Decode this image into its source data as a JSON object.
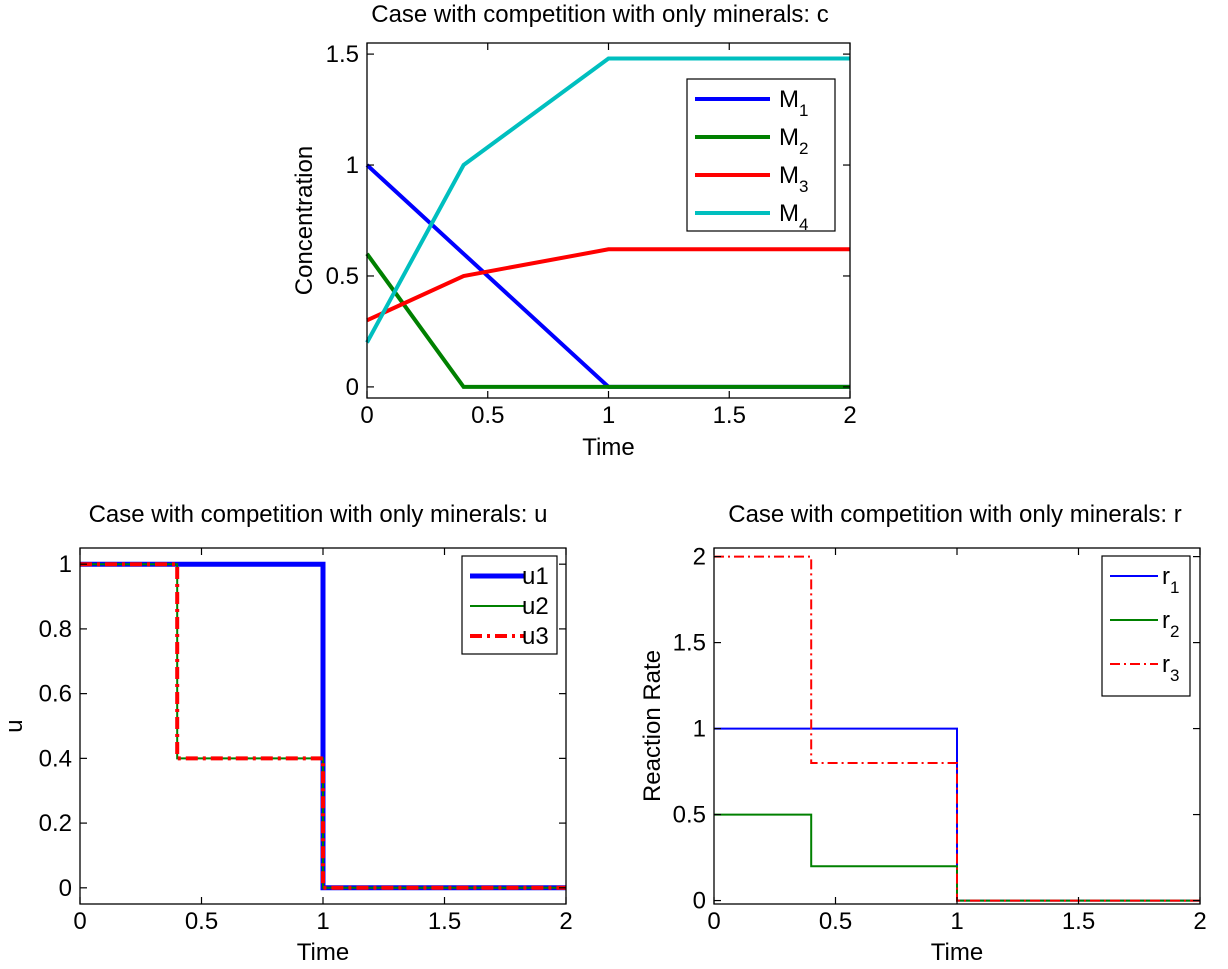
{
  "chart_data": [
    {
      "id": "c",
      "type": "line",
      "title": "Case with competition with only minerals: c",
      "xlabel": "Time",
      "ylabel": "Concentration",
      "xlim": [
        0,
        2
      ],
      "ylim": [
        -0.05,
        1.55
      ],
      "xticks": [
        "0",
        "0.5",
        "1",
        "1.5",
        "2"
      ],
      "xtick_values": [
        0,
        0.5,
        1,
        1.5,
        2
      ],
      "yticks": [
        "0",
        "0.5",
        "1",
        "1.5"
      ],
      "ytick_values": [
        0,
        0.5,
        1,
        1.5
      ],
      "grid": false,
      "legend": "top-right",
      "series": [
        {
          "name": "M",
          "sub": "1",
          "color": "#0000ff",
          "width": 4,
          "dash": "",
          "x": [
            0,
            0.4,
            1,
            2
          ],
          "y": [
            1.0,
            0.6,
            0.0,
            0.0
          ]
        },
        {
          "name": "M",
          "sub": "2",
          "color": "#008000",
          "width": 4,
          "dash": "",
          "x": [
            0,
            0.4,
            1,
            2
          ],
          "y": [
            0.6,
            0.0,
            0.0,
            0.0
          ]
        },
        {
          "name": "M",
          "sub": "3",
          "color": "#ff0000",
          "width": 4,
          "dash": "",
          "x": [
            0,
            0.4,
            1,
            2
          ],
          "y": [
            0.3,
            0.5,
            0.62,
            0.62
          ]
        },
        {
          "name": "M",
          "sub": "4",
          "color": "#00bfbf",
          "width": 4,
          "dash": "",
          "x": [
            0,
            0.4,
            1,
            2
          ],
          "y": [
            0.2,
            1.0,
            1.48,
            1.48
          ]
        }
      ]
    },
    {
      "id": "u",
      "type": "line",
      "title": "Case with competition with only minerals: u",
      "xlabel": "Time",
      "ylabel": "u",
      "xlim": [
        0,
        2
      ],
      "ylim": [
        -0.05,
        1.05
      ],
      "xticks": [
        "0",
        "0.5",
        "1",
        "1.5",
        "2"
      ],
      "xtick_values": [
        0,
        0.5,
        1,
        1.5,
        2
      ],
      "yticks": [
        "0",
        "0.2",
        "0.4",
        "0.6",
        "0.8",
        "1"
      ],
      "ytick_values": [
        0,
        0.2,
        0.4,
        0.6,
        0.8,
        1
      ],
      "grid": false,
      "legend": "top-right",
      "series": [
        {
          "name": "u1",
          "sub": "",
          "color": "#0000ff",
          "width": 5,
          "dash": "",
          "x": [
            0,
            1,
            1,
            2
          ],
          "y": [
            1,
            1,
            0,
            0
          ]
        },
        {
          "name": "u2",
          "sub": "",
          "color": "#008000",
          "width": 2,
          "dash": "",
          "x": [
            0,
            0.4,
            0.4,
            1,
            1,
            2
          ],
          "y": [
            1,
            1,
            0.4,
            0.4,
            0,
            0
          ]
        },
        {
          "name": "u3",
          "sub": "",
          "color": "#ff0000",
          "width": 4,
          "dash": "12,5,3,5",
          "x": [
            0,
            0.4,
            0.4,
            1,
            1,
            2
          ],
          "y": [
            1,
            1,
            0.4,
            0.4,
            0,
            0
          ]
        }
      ]
    },
    {
      "id": "r",
      "type": "line",
      "title": "Case with competition with only minerals: r",
      "xlabel": "Time",
      "ylabel": "Reaction Rate",
      "xlim": [
        0,
        2
      ],
      "ylim": [
        -0.02,
        2.05
      ],
      "xticks": [
        "0",
        "0.5",
        "1",
        "1.5",
        "2"
      ],
      "xtick_values": [
        0,
        0.5,
        1,
        1.5,
        2
      ],
      "yticks": [
        "0",
        "0.5",
        "1",
        "1.5",
        "2"
      ],
      "ytick_values": [
        0,
        0.5,
        1,
        1.5,
        2
      ],
      "grid": false,
      "legend": "top-right",
      "series": [
        {
          "name": "r",
          "sub": "1",
          "color": "#0000ff",
          "width": 2,
          "dash": "",
          "x": [
            0,
            1,
            1,
            2
          ],
          "y": [
            1,
            1,
            0,
            0
          ]
        },
        {
          "name": "r",
          "sub": "2",
          "color": "#008000",
          "width": 2,
          "dash": "",
          "x": [
            0,
            0.4,
            0.4,
            1,
            1,
            2
          ],
          "y": [
            0.5,
            0.5,
            0.2,
            0.2,
            0,
            0
          ]
        },
        {
          "name": "r",
          "sub": "3",
          "color": "#ff0000",
          "width": 2,
          "dash": "10,4,2,4",
          "x": [
            0,
            0.4,
            0.4,
            1,
            1,
            2
          ],
          "y": [
            2,
            2,
            0.8,
            0.8,
            0,
            0
          ]
        }
      ]
    }
  ]
}
